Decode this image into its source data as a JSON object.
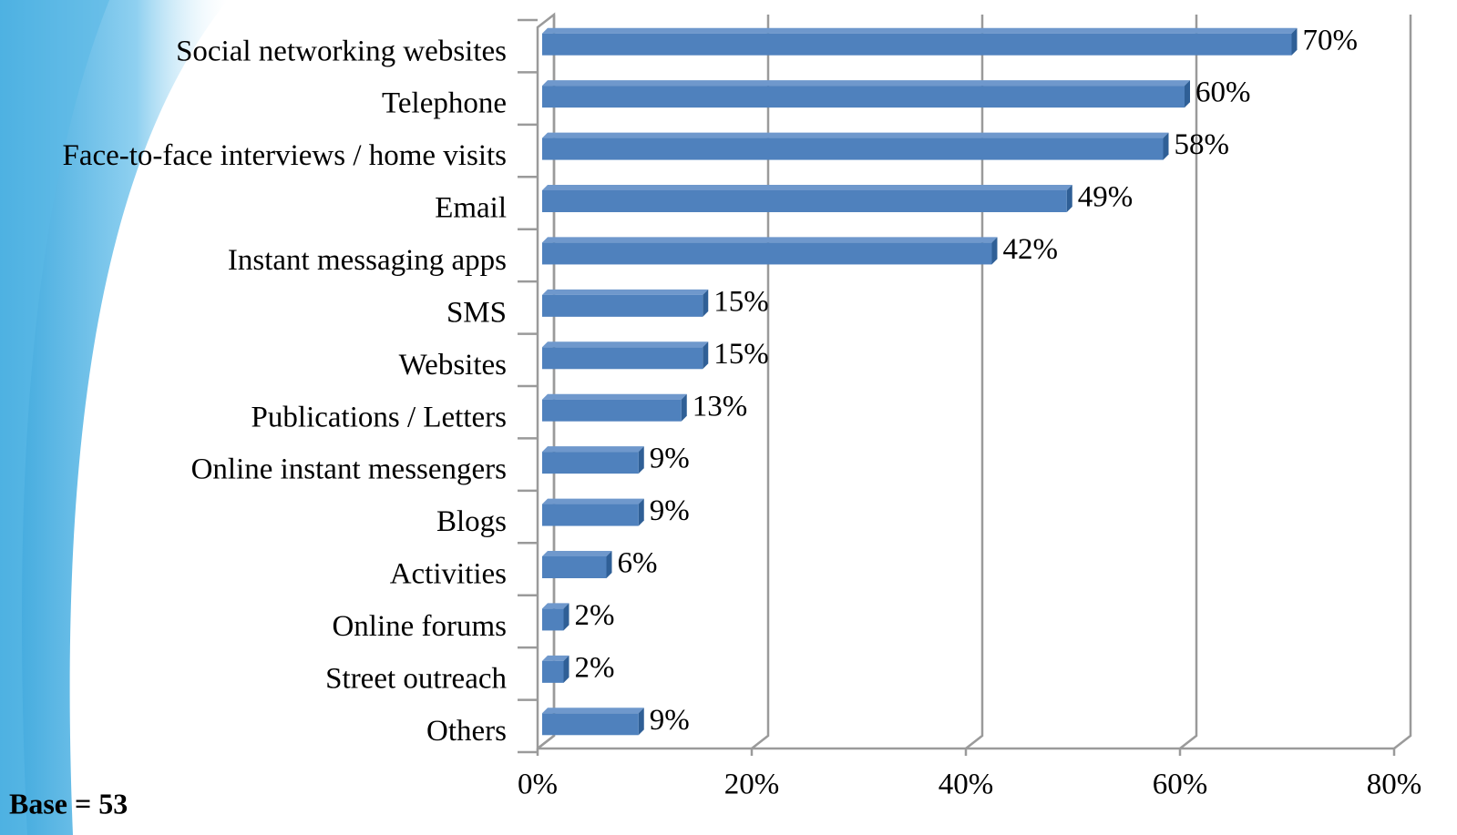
{
  "chart_data": {
    "type": "bar",
    "orientation": "horizontal",
    "categories": [
      "Social networking websites",
      "Telephone",
      "Face-to-face interviews / home visits",
      "Email",
      "Instant messaging apps",
      "SMS",
      "Websites",
      "Publications / Letters",
      "Online instant messengers",
      "Blogs",
      "Activities",
      "Online forums",
      "Street outreach",
      "Others"
    ],
    "values": [
      70,
      60,
      58,
      49,
      42,
      15,
      15,
      13,
      9,
      9,
      6,
      2,
      2,
      9
    ],
    "value_labels": [
      "70%",
      "60%",
      "58%",
      "49%",
      "42%",
      "15%",
      "15%",
      "13%",
      "9%",
      "9%",
      "6%",
      "2%",
      "2%",
      "9%"
    ],
    "color": "#4f81bd",
    "xlim": [
      0,
      80
    ],
    "xticks": [
      {
        "value": 0,
        "label": "0%"
      },
      {
        "value": 20,
        "label": "20%"
      },
      {
        "value": 40,
        "label": "40%"
      },
      {
        "value": 60,
        "label": "60%"
      },
      {
        "value": 80,
        "label": "80%"
      }
    ],
    "grid": true,
    "annotation": "Base = 53"
  }
}
